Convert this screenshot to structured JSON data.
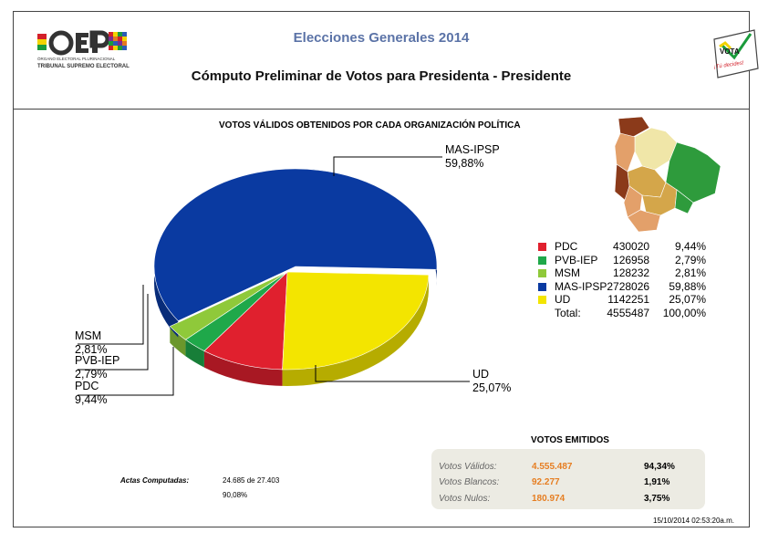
{
  "header": {
    "title": "Elecciones Generales  2014",
    "subtitle": "Cómputo Preliminar de Votos para  Presidenta - Presidente",
    "logo_left_text": "OEP",
    "logo_left_caption": "ÓRGANO ELECTORAL PLURINACIONAL",
    "logo_left_caption2": "TRIBUNAL SUPREMO ELECTORAL",
    "logo_right_text": "VOTA",
    "logo_right_slogan": "¡Tú decides!"
  },
  "chart_data": {
    "type": "pie",
    "title": "VOTOS VÁLIDOS OBTENIDOS POR CADA ORGANIZACIÓN POLÍTICA",
    "slices": [
      {
        "name": "PDC",
        "votes": 430020,
        "percent": "9,44%",
        "value": 9.44,
        "color": "#e0202e"
      },
      {
        "name": "PVB-IEP",
        "votes": 126958,
        "percent": "2,79%",
        "value": 2.79,
        "color": "#1fa84a"
      },
      {
        "name": "MSM",
        "votes": 128232,
        "percent": "2,81%",
        "value": 2.81,
        "color": "#8fc93a"
      },
      {
        "name": "MAS-IPSP",
        "votes": 2728026,
        "percent": "59,88%",
        "value": 59.88,
        "color": "#0a3aa1"
      },
      {
        "name": "UD",
        "votes": 1142251,
        "percent": "25,07%",
        "value": 25.07,
        "color": "#f3e500"
      }
    ],
    "total": {
      "label": "Total:",
      "votes": "4555487",
      "percent": "100,00%"
    },
    "legend_position": "right"
  },
  "actas": {
    "label": "Actas Computadas:",
    "count": "24.685 de 27.403",
    "percent": "90,08%"
  },
  "emitidos": {
    "title": "VOTOS EMITIDOS",
    "rows": [
      {
        "name": "Votos Válidos:",
        "value": "4.555.487",
        "percent": "94,34%"
      },
      {
        "name": "Votos Blancos:",
        "value": "92.277",
        "percent": "1,91%"
      },
      {
        "name": "Votos Nulos:",
        "value": "180.974",
        "percent": "3,75%"
      }
    ]
  },
  "timestamp": "15/10/2014 02:53:20a.m.",
  "map": {
    "colors": [
      "#8b3a1a",
      "#e3a06a",
      "#f0e6a8",
      "#2e9b3c",
      "#d4a64a"
    ]
  }
}
